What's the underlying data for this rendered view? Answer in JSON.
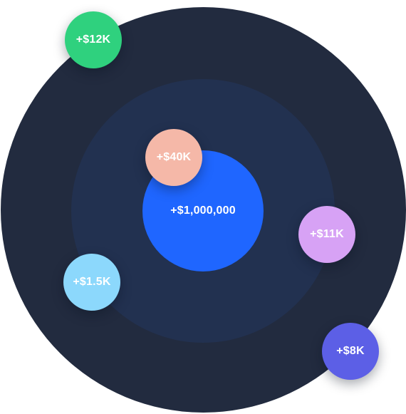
{
  "colors": {
    "outer_ring": "#222b3f",
    "middle_ring": "#223150",
    "core": "#1f66ff",
    "text": "#ffffff"
  },
  "core": {
    "label": "+$1,000,000"
  },
  "bubbles": [
    {
      "id": "12k",
      "label": "+$12K",
      "color": "#2fd17e"
    },
    {
      "id": "40k",
      "label": "+$40K",
      "color": "#f5b8a8"
    },
    {
      "id": "11k",
      "label": "+$11K",
      "color": "#d7a2f5"
    },
    {
      "id": "15k",
      "label": "+$1.5K",
      "color": "#8cd8fc"
    },
    {
      "id": "8k",
      "label": "+$8K",
      "color": "#5c5fe6"
    }
  ]
}
